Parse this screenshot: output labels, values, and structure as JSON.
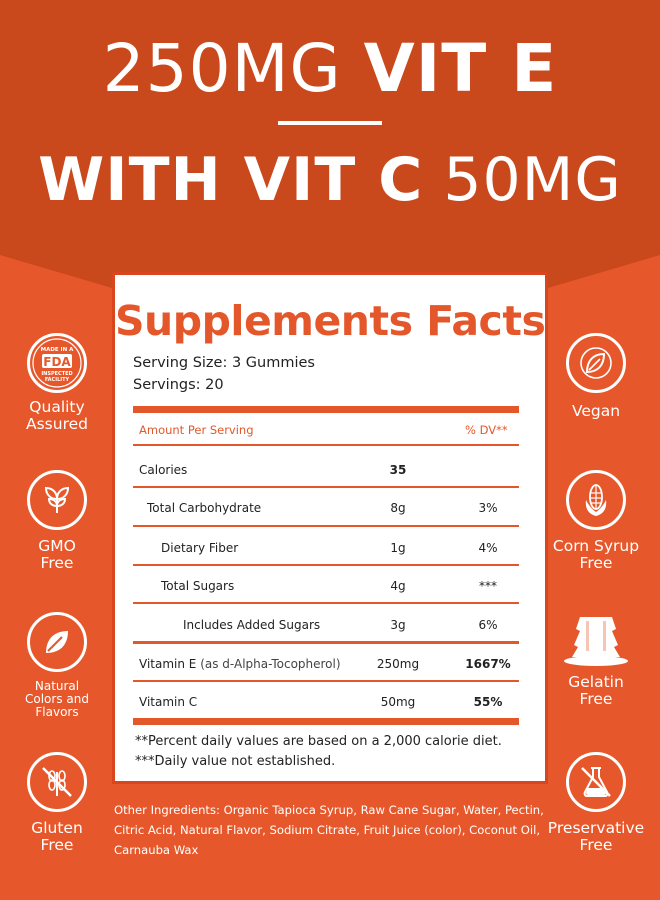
{
  "headline": {
    "line1_light": "250MG",
    "line1_bold": "VIT E",
    "line2_bold": "WITH VIT C",
    "line2_light": "50MG"
  },
  "facts": {
    "title": "Supplements Facts",
    "serving_size_label": "Serving Size:",
    "serving_size_value": "3 Gummies",
    "servings_label": "Servings:",
    "servings_value": "20",
    "header_amount": "Amount Per Serving",
    "header_dv": "% DV**",
    "rows": [
      {
        "name": "Calories",
        "amount": "35",
        "dv": ""
      },
      {
        "name": "Total Carbohydrate",
        "amount": "8g",
        "dv": "3%"
      },
      {
        "name": "Dietary Fiber",
        "amount": "1g",
        "dv": "4%"
      },
      {
        "name": "Total Sugars",
        "amount": "4g",
        "dv": "***"
      },
      {
        "name": "Includes Added Sugars",
        "amount": "3g",
        "dv": "6%"
      },
      {
        "name": "Vitamin E",
        "sub": "(as d-Alpha-Tocopherol)",
        "amount": "250mg",
        "dv": "1667%"
      },
      {
        "name": "Vitamin C",
        "amount": "50mg",
        "dv": "55%"
      }
    ],
    "note1": "**Percent daily values are based on a 2,000 calorie diet.",
    "note2": "***Daily value not established."
  },
  "badges_left": [
    {
      "icon": "fda-seal-icon",
      "seal_lines": [
        "MADE IN A",
        "FDA",
        "INSPECTED",
        "FACILITY"
      ],
      "label": "Quality Assured"
    },
    {
      "icon": "sprout-icon",
      "label": "GMO Free"
    },
    {
      "icon": "leaf-icon",
      "label": "Natural Colors and Flavors"
    },
    {
      "icon": "no-wheat-icon",
      "label": "Gluten Free"
    }
  ],
  "badges_right": [
    {
      "icon": "vegan-leaf-icon",
      "label": "Vegan"
    },
    {
      "icon": "corn-icon",
      "label": "Corn Syrup Free"
    },
    {
      "icon": "gelatin-icon",
      "label": "Gelatin Free"
    },
    {
      "icon": "flask-icon",
      "label": "Preservative Free"
    }
  ],
  "ingredients": "Other Ingredients: Organic Tapioca Syrup, Raw Cane Sugar, Water, Pectin, Citric Acid, Natural Flavor, Sodium Citrate, Fruit Juice (color), Coconut Oil, Carnauba Wax",
  "colors": {
    "banner": "#c9481c",
    "accent": "#e4572a",
    "background": "#e6582b"
  }
}
